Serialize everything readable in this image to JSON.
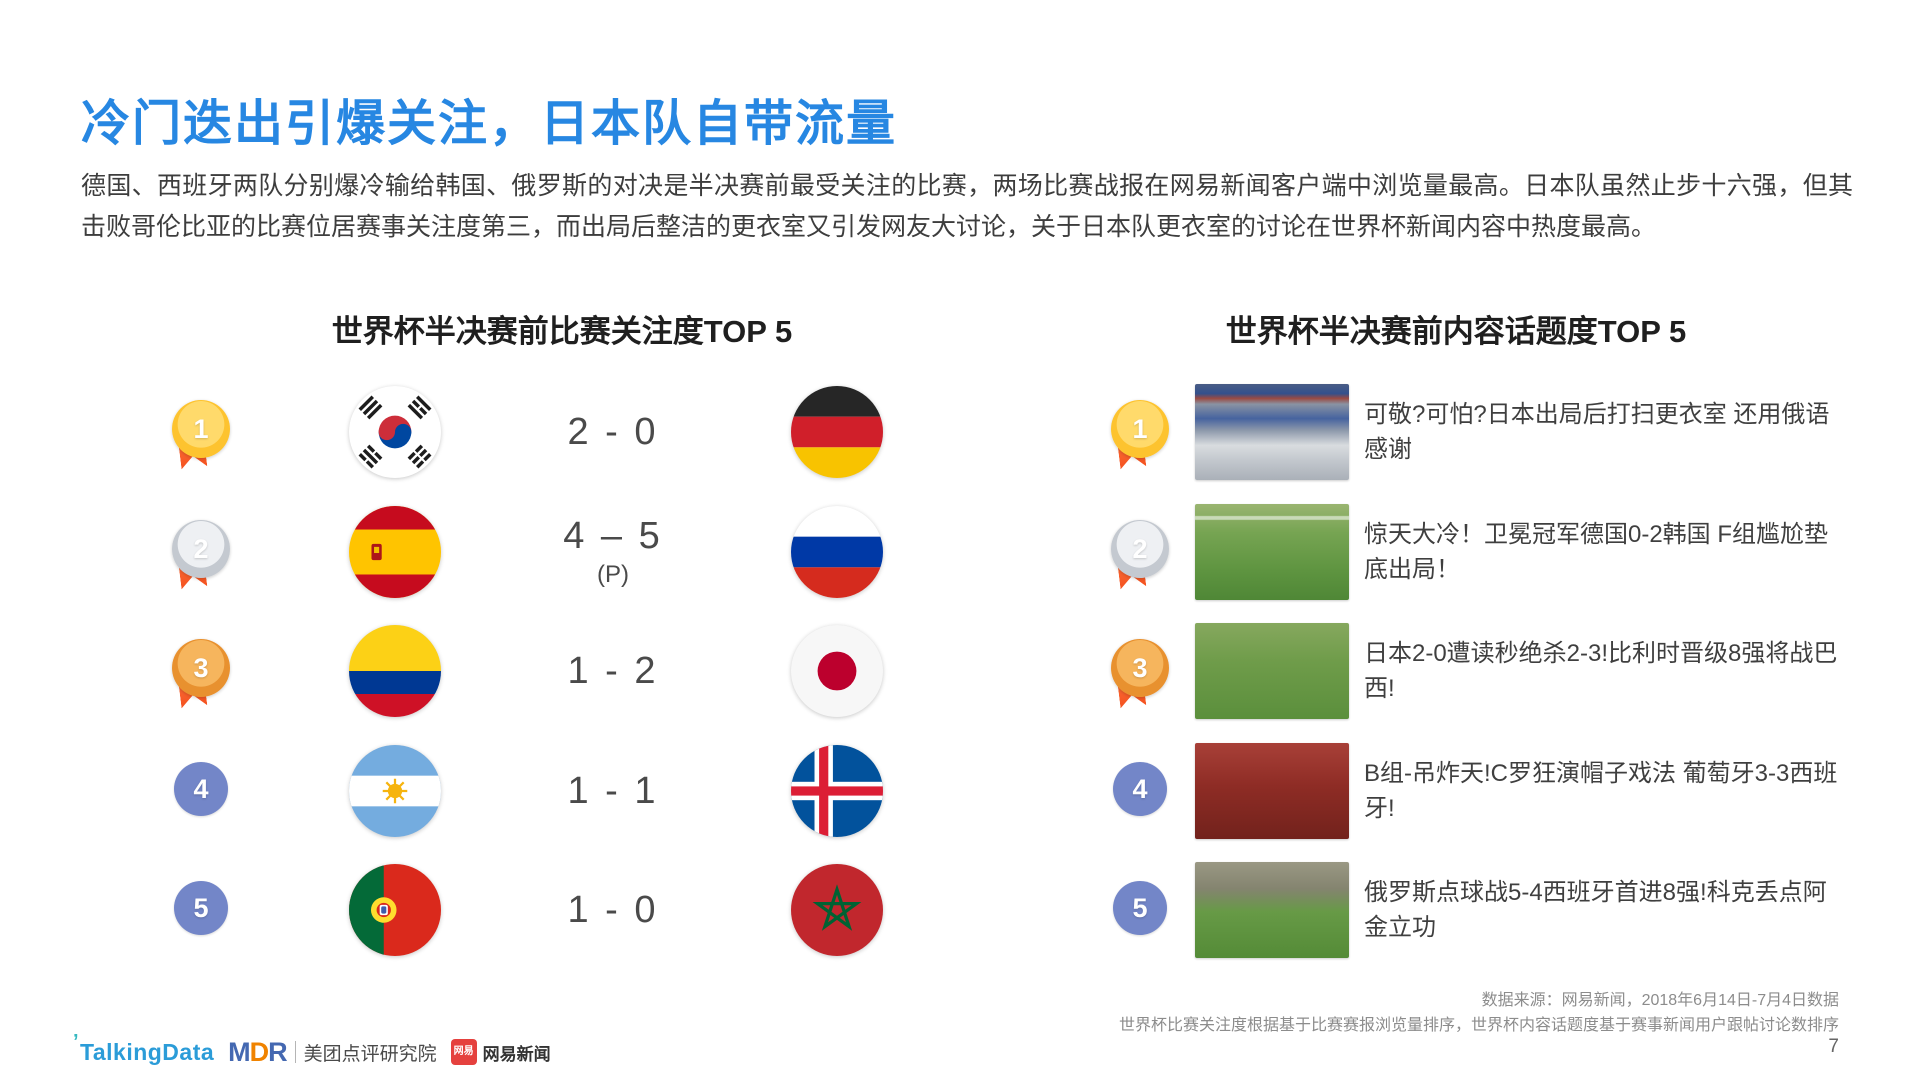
{
  "page": {
    "title": "冷门迭出引爆关注，日本队自带流量",
    "body_paragraph": "德国、西班牙两队分别爆冷输给韩国、俄罗斯的对决是半决赛前最受关注的比赛，两场比赛战报在网易新闻客户端中浏览量最高。日本队虽然止步十六强，但其击败哥伦比亚的比赛位居赛事关注度第三，而出局后整洁的更衣室又引发网友大讨论，关于日本队更衣室的讨论在世界杯新闻内容中热度最高。",
    "page_number": "7"
  },
  "match_ranking": {
    "header": "世界杯半决赛前比赛关注度TOP 5",
    "rows": [
      {
        "rank": "1",
        "home": {
          "country": "South Korea",
          "flag": "south-korea"
        },
        "score": "2 - 0",
        "note": "",
        "away": {
          "country": "Germany",
          "flag": "germany"
        }
      },
      {
        "rank": "2",
        "home": {
          "country": "Spain",
          "flag": "spain"
        },
        "score": "4 – 5",
        "note": "(P)",
        "away": {
          "country": "Russia",
          "flag": "russia"
        }
      },
      {
        "rank": "3",
        "home": {
          "country": "Colombia",
          "flag": "colombia"
        },
        "score": "1 - 2",
        "note": "",
        "away": {
          "country": "Japan",
          "flag": "japan"
        }
      },
      {
        "rank": "4",
        "home": {
          "country": "Argentina",
          "flag": "argentina"
        },
        "score": "1 - 1",
        "note": "",
        "away": {
          "country": "Iceland",
          "flag": "iceland"
        }
      },
      {
        "rank": "5",
        "home": {
          "country": "Portugal",
          "flag": "portugal"
        },
        "score": "1 - 0",
        "note": "",
        "away": {
          "country": "Morocco",
          "flag": "morocco"
        }
      }
    ]
  },
  "topic_ranking": {
    "header": "世界杯半决赛前内容话题度TOP 5",
    "rows": [
      {
        "rank": "1",
        "thumbnail": "locker-room",
        "headline": "可敬?可怕?日本出局后打扫更衣室 还用俄语感谢"
      },
      {
        "rank": "2",
        "thumbnail": "match-pitch",
        "headline": "惊天大冷！卫冕冠军德国0-2韩国 F组尴尬垫底出局！"
      },
      {
        "rank": "3",
        "thumbnail": "players-pitch",
        "headline": "日本2-0遭读秒绝杀2-3!比利时晋级8强将战巴西!"
      },
      {
        "rank": "4",
        "thumbnail": "red-crowd",
        "headline": "B组-吊炸天!C罗狂演帽子戏法 葡萄牙3-3西班牙!"
      },
      {
        "rank": "5",
        "thumbnail": "celebration",
        "headline": "俄罗斯点球战5-4西班牙首进8强!科克丢点阿金立功"
      }
    ]
  },
  "footer": {
    "source_line1": "数据来源：网易新闻，2018年6月14日-7月4日数据",
    "source_line2": "世界杯比赛关注度根据基于比赛赛报浏览量排序，世界杯内容话题度基于赛事新闻用户跟帖讨论数排序",
    "logos": {
      "talkingdata": "TalkingData",
      "mdr": {
        "m": "M",
        "d": "D",
        "r": "R"
      },
      "mdr_label": "美团点评研究院",
      "netease_badge": "网易",
      "netease_label": "网易新闻"
    }
  },
  "colors": {
    "title_blue": "#2787E2",
    "gold_medal": "#FDC32F",
    "silver_medal": "#C4C9D0",
    "bronze_medal": "#E8912F",
    "ribbon_red": "#F4511E",
    "rank_blue": "#7386C8"
  }
}
